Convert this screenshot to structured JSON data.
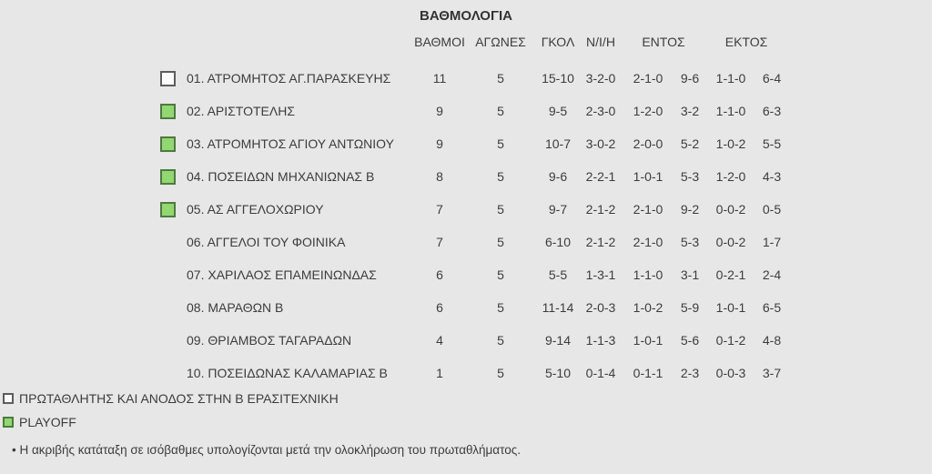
{
  "title": "ΒΑΘΜΟΛΟΓΙΑ",
  "table": {
    "headers": {
      "points": "ΒΑΘΜΟΙ",
      "games": "ΑΓΩΝΕΣ",
      "goals": "ΓΚΟΛ",
      "wdl": "Ν/Ι/Η",
      "home": "ΕΝΤΟΣ",
      "away": "ΕΚΤΟΣ"
    },
    "rows": [
      {
        "marker": "champion",
        "name": "01. ΑΤΡΟΜΗΤΟΣ ΑΓ.ΠΑΡΑΣΚΕΥΗΣ",
        "points": "11",
        "games": "5",
        "goals": "15-10",
        "wdl": "3-2-0",
        "home_record": "2-1-0",
        "home_goals": "9-6",
        "away_record": "1-1-0",
        "away_goals": "6-4"
      },
      {
        "marker": "playoff",
        "name": "02. ΑΡΙΣΤΟΤΕΛΗΣ",
        "points": "9",
        "games": "5",
        "goals": "9-5",
        "wdl": "2-3-0",
        "home_record": "1-2-0",
        "home_goals": "3-2",
        "away_record": "1-1-0",
        "away_goals": "6-3"
      },
      {
        "marker": "playoff",
        "name": "03. ΑΤΡΟΜΗΤΟΣ ΑΓΙΟΥ ΑΝΤΩΝΙΟΥ",
        "points": "9",
        "games": "5",
        "goals": "10-7",
        "wdl": "3-0-2",
        "home_record": "2-0-0",
        "home_goals": "5-2",
        "away_record": "1-0-2",
        "away_goals": "5-5"
      },
      {
        "marker": "playoff",
        "name": "04. ΠΟΣΕΙΔΩΝ ΜΗΧΑΝΙΩΝΑΣ Β",
        "points": "8",
        "games": "5",
        "goals": "9-6",
        "wdl": "2-2-1",
        "home_record": "1-0-1",
        "home_goals": "5-3",
        "away_record": "1-2-0",
        "away_goals": "4-3"
      },
      {
        "marker": "playoff",
        "name": "05. ΑΣ ΑΓΓΕΛΟΧΩΡΙΟΥ",
        "points": "7",
        "games": "5",
        "goals": "9-7",
        "wdl": "2-1-2",
        "home_record": "2-1-0",
        "home_goals": "9-2",
        "away_record": "0-0-2",
        "away_goals": "0-5"
      },
      {
        "marker": "none",
        "name": "06. ΑΓΓΕΛΟΙ ΤΟΥ ΦΟΙΝΙΚΑ",
        "points": "7",
        "games": "5",
        "goals": "6-10",
        "wdl": "2-1-2",
        "home_record": "2-1-0",
        "home_goals": "5-3",
        "away_record": "0-0-2",
        "away_goals": "1-7"
      },
      {
        "marker": "none",
        "name": "07. ΧΑΡΙΛΑΟΣ ΕΠΑΜΕΙΝΩΝΔΑΣ",
        "points": "6",
        "games": "5",
        "goals": "5-5",
        "wdl": "1-3-1",
        "home_record": "1-1-0",
        "home_goals": "3-1",
        "away_record": "0-2-1",
        "away_goals": "2-4"
      },
      {
        "marker": "none",
        "name": "08. ΜΑΡΑΘΩΝ Β",
        "points": "6",
        "games": "5",
        "goals": "11-14",
        "wdl": "2-0-3",
        "home_record": "1-0-2",
        "home_goals": "5-9",
        "away_record": "1-0-1",
        "away_goals": "6-5"
      },
      {
        "marker": "none",
        "name": "09. ΘΡΙΑΜΒΟΣ ΤΑΓΑΡΑΔΩΝ",
        "points": "4",
        "games": "5",
        "goals": "9-14",
        "wdl": "1-1-3",
        "home_record": "1-0-1",
        "home_goals": "5-6",
        "away_record": "0-1-2",
        "away_goals": "4-8"
      },
      {
        "marker": "none",
        "name": "10. ΠΟΣΕΙΔΩΝΑΣ ΚΑΛΑΜΑΡΙΑΣ Β",
        "points": "1",
        "games": "5",
        "goals": "5-10",
        "wdl": "0-1-4",
        "home_record": "0-1-1",
        "home_goals": "2-3",
        "away_record": "0-0-3",
        "away_goals": "3-7"
      }
    ]
  },
  "legend": [
    {
      "marker": "champion",
      "label": "ΠΡΩΤΑΘΛΗΤΗΣ ΚΑΙ ΑΝΟΔΟΣ ΣΤΗΝ Β ΕΡΑΣΙΤΕΧΝΙΚΗ"
    },
    {
      "marker": "playoff",
      "label": "PLAYOFF"
    }
  ],
  "footnote": "• Η ακριβής κατάταξη σε ισόβαθμες υπολογίζονται μετά την ολοκλήρωση του πρωταθλήματος.",
  "colors": {
    "background": "#e7e7e7",
    "text": "#3c3c3c",
    "playoff_fill": "#8fd96f",
    "playoff_border": "#4e7a3e",
    "champion_fill": "#fcfcfc",
    "champion_border": "#5d5d5d"
  }
}
